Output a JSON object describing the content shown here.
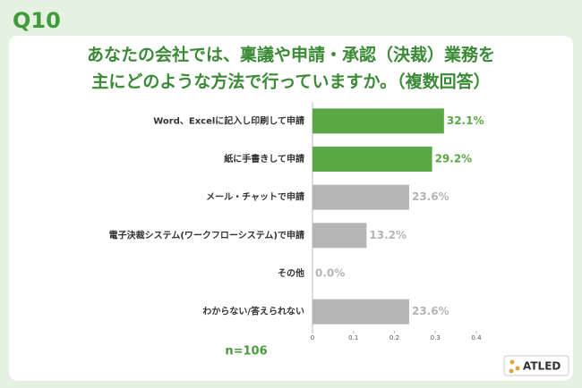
{
  "chart_data": {
    "type": "bar",
    "orientation": "horizontal",
    "question_number": "Q10",
    "title": [
      "あなたの会社では、稟議や申請・承認（決裁）業務を",
      "主にどのような方法で行っていますか。（複数回答）"
    ],
    "categories": [
      "Word、Excelに記入し印刷して申請",
      "紙に手書きして申請",
      "メール・チャットで申請",
      "電子決裁システム(ワークフローシステム)で申請",
      "その他",
      "わからない/答えられない"
    ],
    "values": [
      0.321,
      0.292,
      0.236,
      0.132,
      0.0,
      0.236
    ],
    "value_labels": [
      "32.1%",
      "29.2%",
      "23.6%",
      "13.2%",
      "0.0%",
      "23.6%"
    ],
    "colors": [
      "#5aa845",
      "#5aa845",
      "#b5b5b5",
      "#b5b5b5",
      "#b5b5b5",
      "#b5b5b5"
    ],
    "xlim": [
      0,
      0.4
    ],
    "xticks": [
      0,
      0.1,
      0.2,
      0.3,
      0.4
    ],
    "note": "n=106",
    "brand": "ATLED"
  }
}
